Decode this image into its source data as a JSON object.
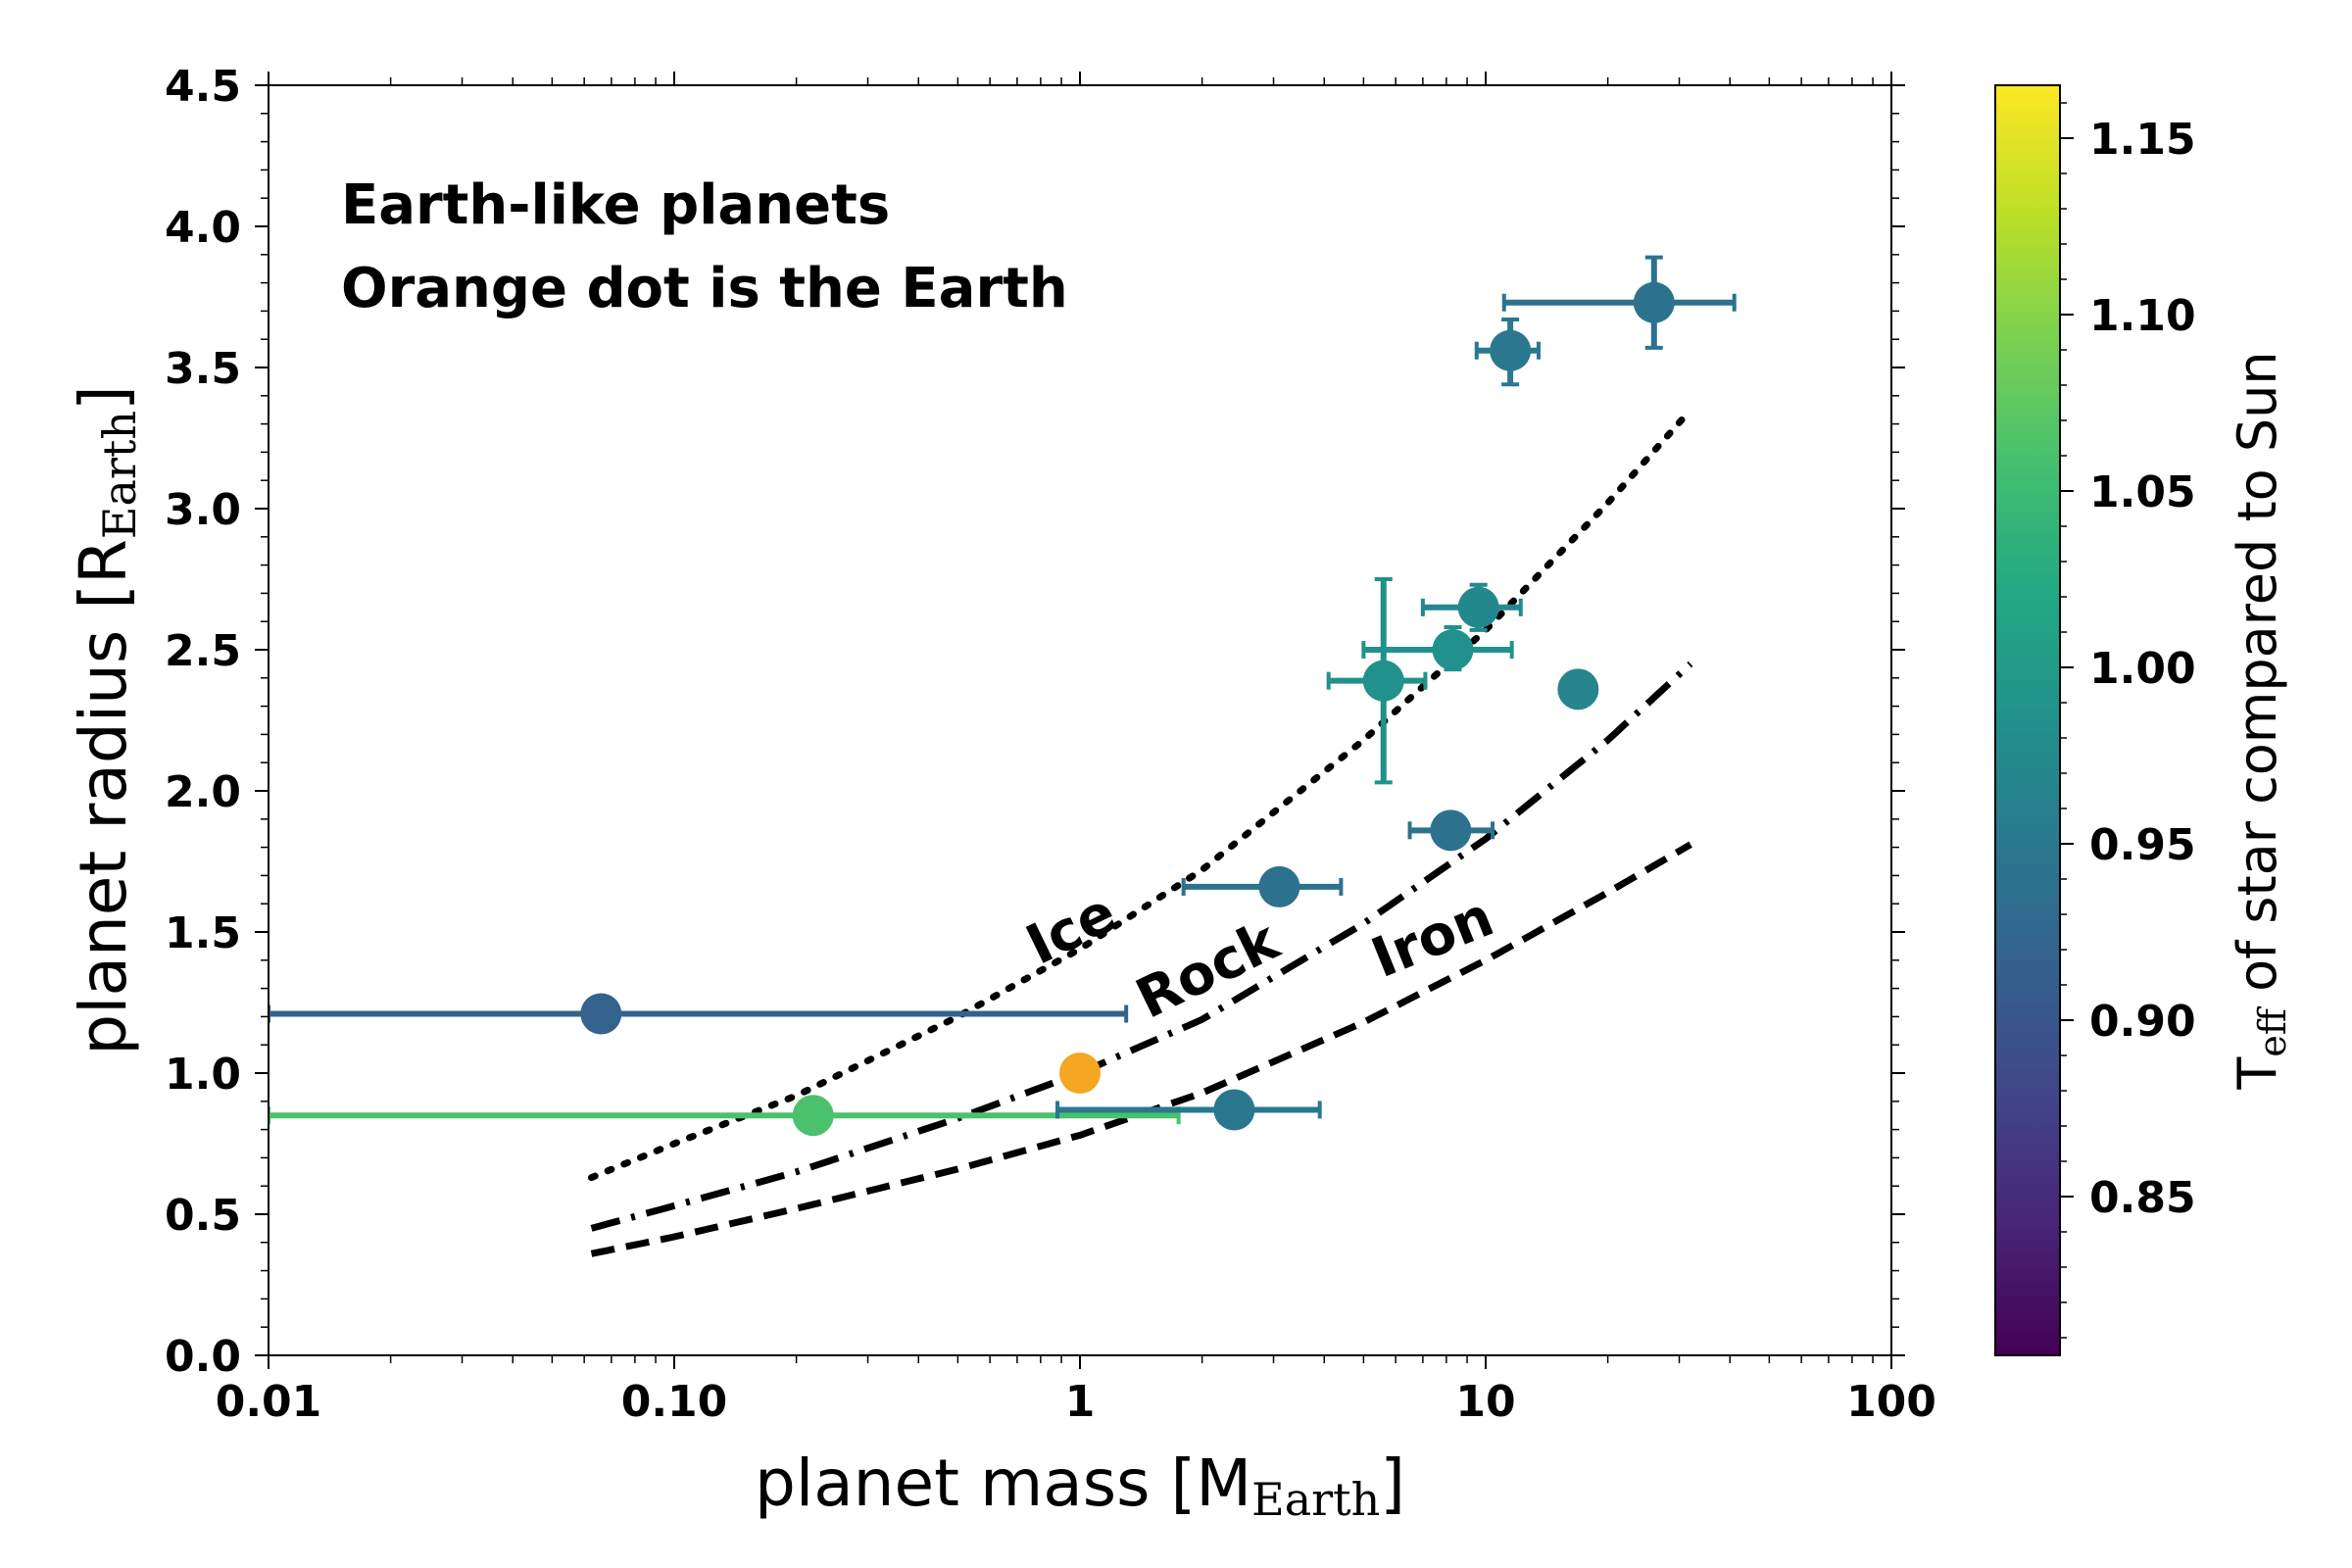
{
  "chart_data": {
    "type": "scatter",
    "xscale": "log",
    "xlim": [
      0.01,
      100
    ],
    "ylim": [
      0.0,
      4.5
    ],
    "grid": false,
    "xlabel": {
      "main": "planet mass [M",
      "sub": "Earth",
      "close": "]"
    },
    "ylabel": {
      "main": "planet radius [R",
      "sub": "Earth",
      "close": "]"
    },
    "xticks": [
      {
        "value": 0.01,
        "label": "0.01"
      },
      {
        "value": 0.1,
        "label": "0.10"
      },
      {
        "value": 1,
        "label": "1"
      },
      {
        "value": 10,
        "label": "10"
      },
      {
        "value": 100,
        "label": "100"
      }
    ],
    "yticks": [
      {
        "value": 0.0,
        "label": "0.0"
      },
      {
        "value": 0.5,
        "label": "0.5"
      },
      {
        "value": 1.0,
        "label": "1.0"
      },
      {
        "value": 1.5,
        "label": "1.5"
      },
      {
        "value": 2.0,
        "label": "2.0"
      },
      {
        "value": 2.5,
        "label": "2.5"
      },
      {
        "value": 3.0,
        "label": "3.0"
      },
      {
        "value": 3.5,
        "label": "3.5"
      },
      {
        "value": 4.0,
        "label": "4.0"
      },
      {
        "value": 4.5,
        "label": "4.5"
      }
    ],
    "annotations": [
      "Earth-like planets",
      "Orange dot is the Earth"
    ],
    "points": [
      {
        "mass": 0.066,
        "radius": 1.21,
        "mass_err": [
          0.01,
          1.3
        ],
        "radius_err": null,
        "teff": 0.935,
        "color": "#33638d"
      },
      {
        "mass": 0.22,
        "radius": 0.85,
        "mass_err": [
          0.01,
          1.75
        ],
        "radius_err": null,
        "teff": 1.065,
        "color": "#4ac16d"
      },
      {
        "mass": 1.0,
        "radius": 1.0,
        "mass_err": null,
        "radius_err": null,
        "teff": 1.0,
        "color": "#f5a623",
        "is_earth": true
      },
      {
        "mass": 2.4,
        "radius": 0.87,
        "mass_err": [
          0.88,
          3.9
        ],
        "radius_err": null,
        "teff": 0.97,
        "color": "#2a788e"
      },
      {
        "mass": 3.1,
        "radius": 1.66,
        "mass_err": [
          1.8,
          4.4
        ],
        "radius_err": null,
        "teff": 0.955,
        "color": "#2c728e"
      },
      {
        "mass": 5.6,
        "radius": 2.39,
        "mass_err": [
          4.1,
          7.1
        ],
        "radius_err": [
          2.03,
          2.75
        ],
        "teff": 1.0,
        "color": "#21918c"
      },
      {
        "mass": 8.2,
        "radius": 1.86,
        "mass_err": [
          6.5,
          10.4
        ],
        "radius_err": null,
        "teff": 0.955,
        "color": "#2c728e"
      },
      {
        "mass": 8.3,
        "radius": 2.5,
        "mass_err": [
          5.0,
          11.6
        ],
        "radius_err": [
          2.43,
          2.58
        ],
        "teff": 0.995,
        "color": "#21918c"
      },
      {
        "mass": 9.6,
        "radius": 2.65,
        "mass_err": [
          7.0,
          12.2
        ],
        "radius_err": [
          2.57,
          2.73
        ],
        "teff": 0.98,
        "color": "#23888e"
      },
      {
        "mass": 11.5,
        "radius": 3.56,
        "mass_err": [
          9.5,
          13.5
        ],
        "radius_err": [
          3.44,
          3.67
        ],
        "teff": 0.965,
        "color": "#2a788e"
      },
      {
        "mass": 16.9,
        "radius": 2.36,
        "mass_err": [
          15.6,
          18.1
        ],
        "radius_err": null,
        "teff": 0.975,
        "color": "#25848e"
      },
      {
        "mass": 26.0,
        "radius": 3.73,
        "mass_err": [
          11.1,
          41.0
        ],
        "radius_err": [
          3.57,
          3.89
        ],
        "teff": 0.955,
        "color": "#2c728e"
      }
    ],
    "curves": [
      {
        "name": "Ice",
        "style": "dotted",
        "x": [
          0.0625,
          0.1,
          0.2,
          0.5,
          1,
          2,
          5,
          10,
          20,
          32
        ],
        "y": [
          0.63,
          0.75,
          0.92,
          1.2,
          1.44,
          1.72,
          2.18,
          2.57,
          3.02,
          3.35
        ]
      },
      {
        "name": "Rock",
        "style": "dashdot",
        "x": [
          0.0625,
          0.1,
          0.2,
          0.5,
          1,
          2,
          5,
          10,
          20,
          32
        ],
        "y": [
          0.45,
          0.53,
          0.65,
          0.84,
          1.0,
          1.19,
          1.53,
          1.83,
          2.18,
          2.45
        ]
      },
      {
        "name": "Iron",
        "style": "dashed",
        "x": [
          0.0625,
          0.1,
          0.2,
          0.5,
          1,
          2,
          5,
          10,
          20,
          32
        ],
        "y": [
          0.36,
          0.42,
          0.52,
          0.66,
          0.78,
          0.93,
          1.18,
          1.4,
          1.64,
          1.81
        ]
      }
    ],
    "colorbar": {
      "label_main": "T",
      "label_sub": "eff",
      "label_rest": " of star compared to Sun",
      "colormap": "viridis",
      "range": [
        0.805,
        1.165
      ],
      "ticks": [
        {
          "value": 0.85,
          "label": "0.85"
        },
        {
          "value": 0.9,
          "label": "0.90"
        },
        {
          "value": 0.95,
          "label": "0.95"
        },
        {
          "value": 1.0,
          "label": "1.00"
        },
        {
          "value": 1.05,
          "label": "1.05"
        },
        {
          "value": 1.1,
          "label": "1.10"
        },
        {
          "value": 1.15,
          "label": "1.15"
        }
      ]
    }
  }
}
